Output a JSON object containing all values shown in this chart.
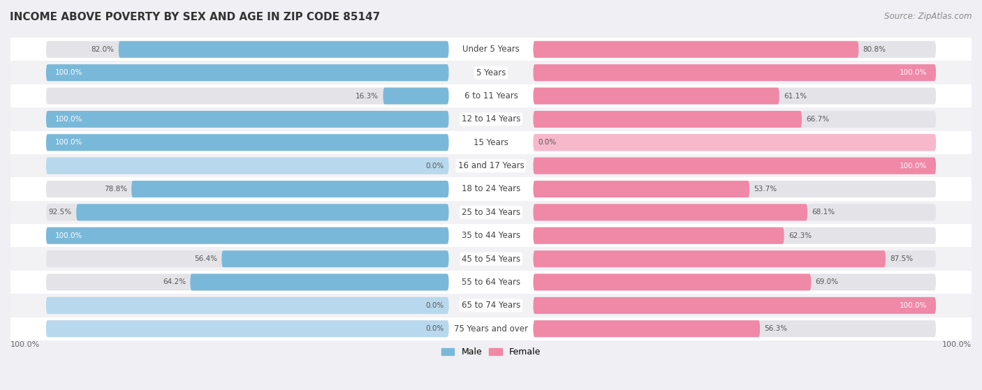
{
  "title": "INCOME ABOVE POVERTY BY SEX AND AGE IN ZIP CODE 85147",
  "source": "Source: ZipAtlas.com",
  "categories": [
    "Under 5 Years",
    "5 Years",
    "6 to 11 Years",
    "12 to 14 Years",
    "15 Years",
    "16 and 17 Years",
    "18 to 24 Years",
    "25 to 34 Years",
    "35 to 44 Years",
    "45 to 54 Years",
    "55 to 64 Years",
    "65 to 74 Years",
    "75 Years and over"
  ],
  "male_values": [
    82.0,
    100.0,
    16.3,
    100.0,
    100.0,
    0.0,
    78.8,
    92.5,
    100.0,
    56.4,
    64.2,
    0.0,
    0.0
  ],
  "female_values": [
    80.8,
    100.0,
    61.1,
    66.7,
    0.0,
    100.0,
    53.7,
    68.1,
    62.3,
    87.5,
    69.0,
    100.0,
    56.3
  ],
  "male_color": "#7ab8d9",
  "female_color": "#f088a8",
  "male_color_light": "#b8d8ed",
  "female_color_light": "#f8b8cc",
  "bg_pill_color": "#e4e4e8",
  "row_bg_light": "#f2f2f5",
  "row_bg_dark": "#e8e8ec",
  "title_fontsize": 11,
  "source_fontsize": 8.5,
  "label_fontsize": 8.5
}
